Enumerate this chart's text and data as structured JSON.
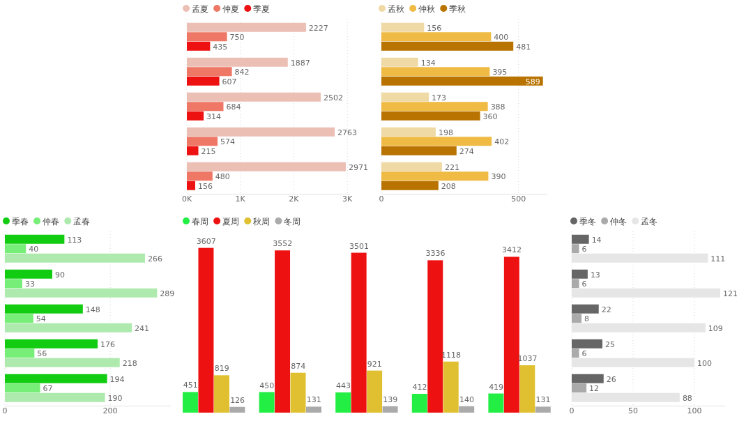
{
  "chart_data": [
    {
      "type": "bar",
      "orientation": "horizontal",
      "categories": [
        null,
        null,
        null,
        null,
        null
      ],
      "legend": "top left",
      "grid": "x",
      "data_labels": true,
      "xlim": [
        0,
        3050
      ],
      "xticks": [
        {
          "value": 0,
          "label": "0K"
        },
        {
          "value": 1000,
          "label": "1K"
        },
        {
          "value": 2000,
          "label": "2K"
        },
        {
          "value": 3000,
          "label": "3K"
        }
      ],
      "series": [
        {
          "name": "孟夏",
          "color": "#ecbfb5",
          "values": [
            2227,
            1887,
            2502,
            2763,
            2971
          ]
        },
        {
          "name": "仲夏",
          "color": "#ee7766",
          "values": [
            750,
            842,
            684,
            574,
            480
          ]
        },
        {
          "name": "季夏",
          "color": "#ee1111",
          "values": [
            435,
            607,
            314,
            215,
            156
          ]
        }
      ]
    },
    {
      "type": "bar",
      "orientation": "horizontal",
      "categories": [
        null,
        null,
        null,
        null,
        null
      ],
      "legend": "top left",
      "grid": "x",
      "data_labels": true,
      "xlim": [
        0,
        605
      ],
      "xticks": [
        0,
        500
      ],
      "series": [
        {
          "name": "孟秋",
          "color": "#efd9a5",
          "values": [
            156,
            134,
            173,
            198,
            221
          ]
        },
        {
          "name": "仲秋",
          "color": "#efbb44",
          "values": [
            400,
            395,
            388,
            402,
            390
          ]
        },
        {
          "name": "季秋",
          "color": "#b87300",
          "values": [
            481,
            589,
            360,
            274,
            208
          ]
        }
      ]
    },
    {
      "type": "bar",
      "orientation": "horizontal",
      "categories": [
        null,
        null,
        null,
        null,
        null
      ],
      "legend": "top left",
      "grid": "x",
      "data_labels": true,
      "xlim": [
        0,
        315
      ],
      "xticks": [
        0,
        200
      ],
      "series": [
        {
          "name": "季春",
          "color": "#11cc11",
          "values": [
            113,
            90,
            148,
            176,
            194
          ]
        },
        {
          "name": "仲春",
          "color": "#77ee77",
          "values": [
            40,
            33,
            54,
            56,
            67
          ]
        },
        {
          "name": "孟春",
          "color": "#aeeaae",
          "values": [
            266,
            289,
            241,
            218,
            190
          ]
        }
      ]
    },
    {
      "type": "bar",
      "categories": [
        null,
        null,
        null,
        null,
        null
      ],
      "legend": "top left",
      "data_labels": true,
      "series": [
        {
          "name": "春周",
          "color": "#22ee44",
          "values": [
            451,
            450,
            443,
            412,
            419
          ]
        },
        {
          "name": "夏周",
          "color": "#ee1111",
          "values": [
            3607,
            3552,
            3501,
            3336,
            3412
          ]
        },
        {
          "name": "秋周",
          "color": "#e0c030",
          "values": [
            819,
            874,
            921,
            1118,
            1037
          ]
        },
        {
          "name": "冬周",
          "color": "#aaaaaa",
          "values": [
            126,
            131,
            139,
            140,
            131
          ]
        }
      ]
    },
    {
      "type": "bar",
      "orientation": "horizontal",
      "categories": [
        null,
        null,
        null,
        null,
        null
      ],
      "legend": "top left",
      "grid": "x",
      "data_labels": true,
      "xlim": [
        0,
        125
      ],
      "xticks": [
        0,
        50,
        100
      ],
      "series": [
        {
          "name": "季冬",
          "color": "#666666",
          "values": [
            14,
            13,
            22,
            25,
            26
          ]
        },
        {
          "name": "仲冬",
          "color": "#aaaaaa",
          "values": [
            6,
            6,
            8,
            6,
            12
          ]
        },
        {
          "name": "孟冬",
          "color": "#e6e6e6",
          "values": [
            111,
            121,
            109,
            100,
            88
          ]
        }
      ]
    }
  ]
}
